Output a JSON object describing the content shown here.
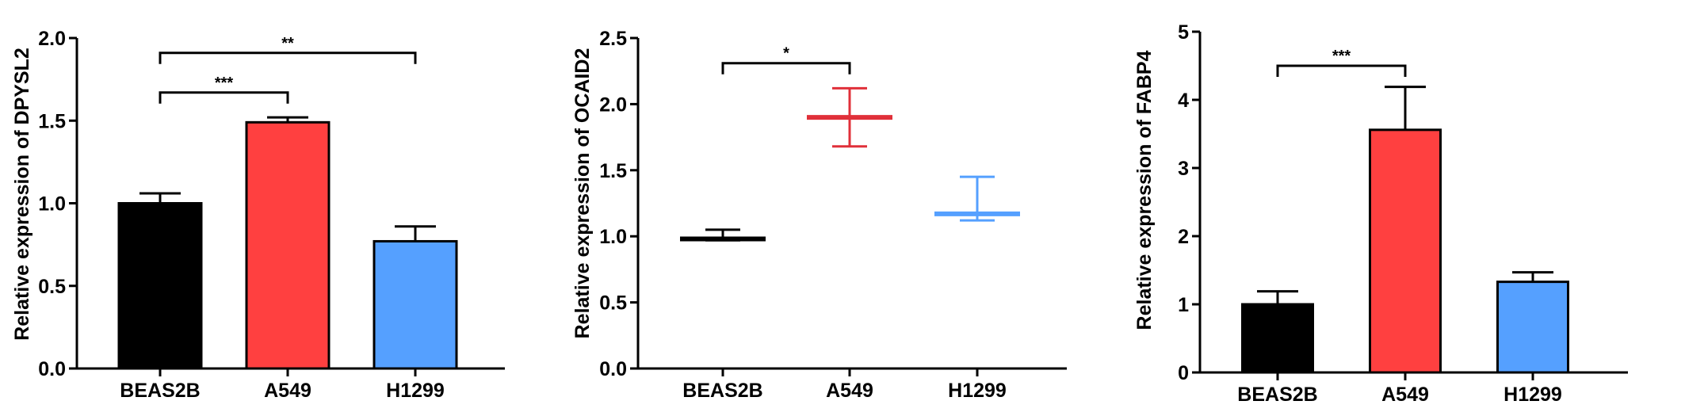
{
  "chart_data": [
    {
      "type": "bar",
      "ylabel": "Relative expression of DPYSL2",
      "categories": [
        "BEAS2B",
        "A549",
        "H1299"
      ],
      "values": [
        1.0,
        1.49,
        0.77
      ],
      "errors": [
        0.06,
        0.03,
        0.09
      ],
      "colors": [
        "#000000",
        "#ff4040",
        "#55a0ff"
      ],
      "ylim": [
        0,
        2.0
      ],
      "yticks": [
        "0.0",
        "0.5",
        "1.0",
        "1.5",
        "2.0"
      ],
      "significance": [
        {
          "from": 0,
          "to": 1,
          "label": "***",
          "y": 1.67
        },
        {
          "from": 0,
          "to": 2,
          "label": "**",
          "y": 1.91
        }
      ]
    },
    {
      "type": "bar",
      "ylabel": "Relative expression of OCAID2",
      "categories": [
        "BEAS2B",
        "A549",
        "H1299"
      ],
      "values": [
        0.98,
        1.9,
        1.17
      ],
      "errors": [
        0.07,
        0.22,
        0.28
      ],
      "errors_low": [
        0.01,
        0.22,
        0.05
      ],
      "colors": [
        "#000000",
        "#e0303a",
        "#55a0ff"
      ],
      "ylim": [
        0,
        2.5
      ],
      "yticks": [
        "0.0",
        "0.5",
        "1.0",
        "1.5",
        "2.0",
        "2.5"
      ],
      "significance": [
        {
          "from": 0,
          "to": 1,
          "label": "*",
          "y": 2.31
        }
      ]
    },
    {
      "type": "bar",
      "ylabel": "Relative expression of FABP4",
      "categories": [
        "BEAS2B",
        "A549",
        "H1299"
      ],
      "values": [
        1.0,
        3.56,
        1.33
      ],
      "errors": [
        0.19,
        0.63,
        0.14
      ],
      "colors": [
        "#000000",
        "#ff4040",
        "#55a0ff"
      ],
      "ylim": [
        0,
        5
      ],
      "yticks": [
        "0",
        "1",
        "2",
        "3",
        "4",
        "5"
      ],
      "significance": [
        {
          "from": 0,
          "to": 1,
          "label": "***",
          "y": 4.5
        }
      ]
    }
  ]
}
